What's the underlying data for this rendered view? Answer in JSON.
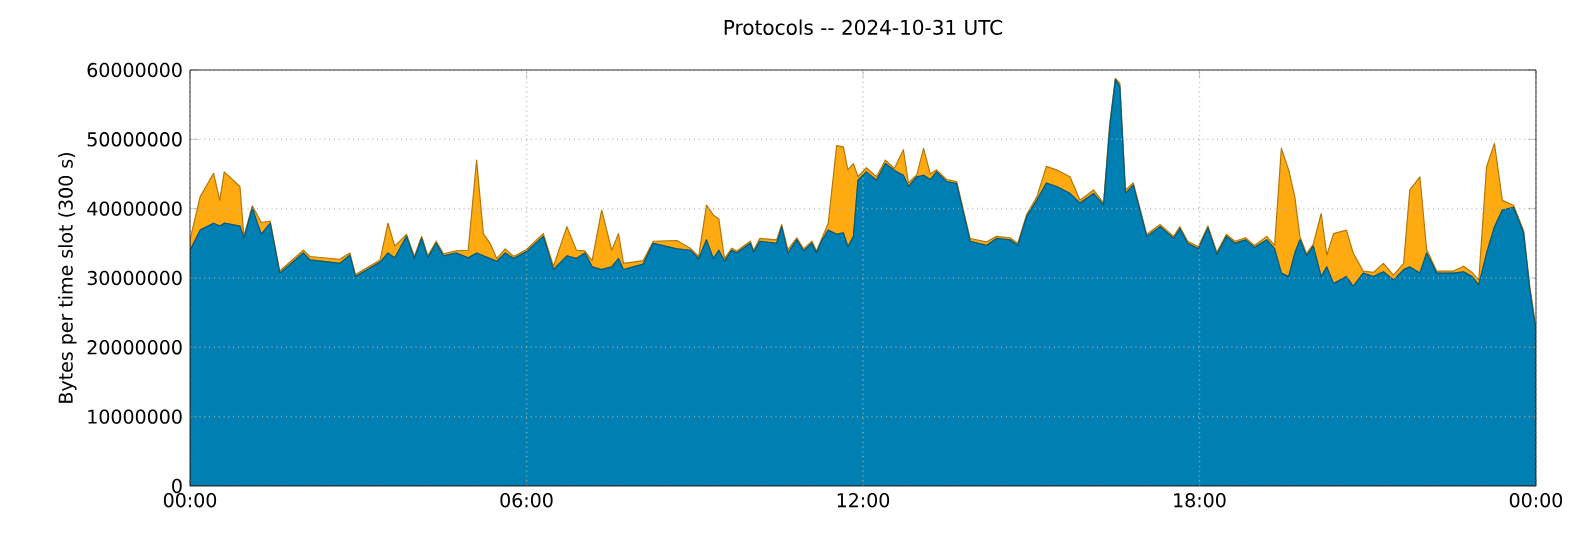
{
  "chart_data": {
    "type": "area",
    "title": "Protocols -- 2024-10-31 UTC",
    "ylabel": "Bytes per time slot (300 s)",
    "stacked": true,
    "grid": true,
    "xlim": [
      0,
      24
    ],
    "ylim": [
      0,
      60000000
    ],
    "xticks": [
      {
        "value": 0,
        "label": "00:00"
      },
      {
        "value": 6,
        "label": "06:00"
      },
      {
        "value": 12,
        "label": "12:00"
      },
      {
        "value": 18,
        "label": "18:00"
      },
      {
        "value": 24,
        "label": "00:00"
      }
    ],
    "yticks": [
      0,
      10000000,
      20000000,
      30000000,
      40000000,
      50000000,
      60000000
    ],
    "x": [
      0,
      0.18,
      0.42,
      0.53,
      0.61,
      0.89,
      0.96,
      1.11,
      1.27,
      1.43,
      1.6,
      2.02,
      2.14,
      2.67,
      2.85,
      2.95,
      3.39,
      3.53,
      3.65,
      3.86,
      4.0,
      4.13,
      4.24,
      4.39,
      4.52,
      4.75,
      4.96,
      5.11,
      5.23,
      5.35,
      5.47,
      5.62,
      5.77,
      6.0,
      6.3,
      6.48,
      6.72,
      6.89,
      7.04,
      7.17,
      7.34,
      7.52,
      7.64,
      7.73,
      8.08,
      8.26,
      8.68,
      8.92,
      9.07,
      9.21,
      9.33,
      9.43,
      9.53,
      9.66,
      9.75,
      9.99,
      10.05,
      10.16,
      10.46,
      10.55,
      10.66,
      10.82,
      10.94,
      11.09,
      11.17,
      11.26,
      11.38,
      11.53,
      11.65,
      11.73,
      11.83,
      11.91,
      12.06,
      12.24,
      12.4,
      12.56,
      12.72,
      12.81,
      12.96,
      13.08,
      13.2,
      13.31,
      13.49,
      13.67,
      13.91,
      14.2,
      14.38,
      14.62,
      14.76,
      14.92,
      15.1,
      15.27,
      15.45,
      15.69,
      15.87,
      16.11,
      16.29,
      16.4,
      16.5,
      16.58,
      16.68,
      16.82,
      17.06,
      17.3,
      17.54,
      17.65,
      17.79,
      17.98,
      18.15,
      18.31,
      18.48,
      18.63,
      18.82,
      18.98,
      19.2,
      19.34,
      19.46,
      19.59,
      19.7,
      19.79,
      19.91,
      20.03,
      20.17,
      20.27,
      20.39,
      20.62,
      20.74,
      20.92,
      21.1,
      21.28,
      21.46,
      21.64,
      21.75,
      21.93,
      22.05,
      22.23,
      22.53,
      22.71,
      22.86,
      22.98,
      23.12,
      23.26,
      23.4,
      23.6,
      23.78,
      23.89,
      23.99
    ],
    "series": [
      {
        "color": "#0080b2",
        "values": [
          34000000,
          36900000,
          37900000,
          37500000,
          37900000,
          37500000,
          35700000,
          40100000,
          36300000,
          37900000,
          30700000,
          33600000,
          32600000,
          32100000,
          33300000,
          30200000,
          32300000,
          33600000,
          32900000,
          36000000,
          32800000,
          35700000,
          32900000,
          35000000,
          33200000,
          33600000,
          32900000,
          33600000,
          33200000,
          32800000,
          32400000,
          33600000,
          32800000,
          33800000,
          36000000,
          31200000,
          33200000,
          32800000,
          33600000,
          31600000,
          31200000,
          31600000,
          32800000,
          31200000,
          32000000,
          35000000,
          34200000,
          34000000,
          32800000,
          35500000,
          32800000,
          34000000,
          32400000,
          34000000,
          33600000,
          35000000,
          33700000,
          35300000,
          35000000,
          37400000,
          33600000,
          35500000,
          33900000,
          35000000,
          33600000,
          35300000,
          36900000,
          36300000,
          36500000,
          34500000,
          36000000,
          44100000,
          45300000,
          44100000,
          46500000,
          45500000,
          44800000,
          43200000,
          44600000,
          44800000,
          44200000,
          45300000,
          43900000,
          43600000,
          35300000,
          34700000,
          35700000,
          35500000,
          34700000,
          38900000,
          41200000,
          43700000,
          43200000,
          42200000,
          40800000,
          42200000,
          40500000,
          51800000,
          58600000,
          57600000,
          42200000,
          43400000,
          36000000,
          37400000,
          35700000,
          37100000,
          35000000,
          34200000,
          37200000,
          33400000,
          36000000,
          35000000,
          35500000,
          34400000,
          35500000,
          34200000,
          30700000,
          30200000,
          33600000,
          35500000,
          33200000,
          34600000,
          30200000,
          31600000,
          29200000,
          30200000,
          28800000,
          30700000,
          30200000,
          30900000,
          29700000,
          31200000,
          31600000,
          30700000,
          33600000,
          30700000,
          30700000,
          30900000,
          30200000,
          29000000,
          33600000,
          37400000,
          39800000,
          40200000,
          36500000,
          28300000,
          23000000
        ]
      },
      {
        "color": "#ffaa11",
        "values": [
          1500000,
          4800000,
          7200000,
          3700000,
          7400000,
          5700000,
          300000,
          300000,
          1700000,
          300000,
          300000,
          400000,
          500000,
          600000,
          300000,
          300000,
          300000,
          4300000,
          1700000,
          300000,
          300000,
          300000,
          300000,
          300000,
          300000,
          300000,
          1100000,
          13400000,
          3200000,
          2200000,
          400000,
          600000,
          300000,
          300000,
          400000,
          500000,
          4200000,
          1200000,
          300000,
          900000,
          8600000,
          2400000,
          3600000,
          900000,
          500000,
          300000,
          1200000,
          300000,
          300000,
          5000000,
          6300000,
          4500000,
          400000,
          300000,
          300000,
          300000,
          300000,
          400000,
          500000,
          300000,
          500000,
          300000,
          300000,
          300000,
          300000,
          300000,
          1000000,
          12800000,
          12400000,
          11100000,
          10500000,
          500000,
          600000,
          500000,
          500000,
          300000,
          3700000,
          500000,
          300000,
          3900000,
          800000,
          300000,
          300000,
          300000,
          400000,
          500000,
          300000,
          300000,
          300000,
          300000,
          500000,
          2400000,
          2400000,
          2400000,
          400000,
          500000,
          300000,
          500000,
          200000,
          500000,
          500000,
          300000,
          300000,
          300000,
          300000,
          300000,
          300000,
          300000,
          300000,
          300000,
          300000,
          300000,
          300000,
          300000,
          500000,
          500000,
          18000000,
          15400000,
          8100000,
          500000,
          300000,
          300000,
          9100000,
          1700000,
          7200000,
          6700000,
          4800000,
          300000,
          600000,
          1200000,
          700000,
          900000,
          11100000,
          13900000,
          500000,
          300000,
          300000,
          800000,
          600000,
          700000,
          12500000,
          12000000,
          1400000,
          300000,
          300000,
          500000,
          300000
        ]
      }
    ]
  }
}
